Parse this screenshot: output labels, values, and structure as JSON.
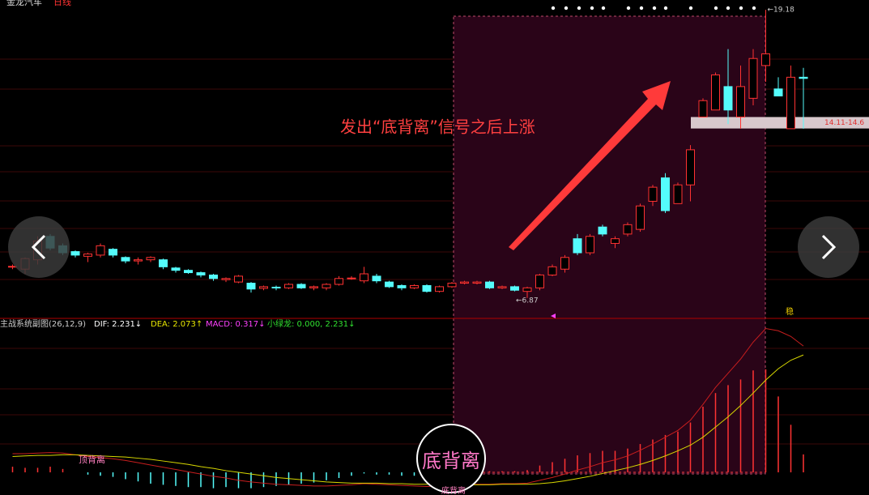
{
  "chart_data": [
    {
      "type": "candlestick",
      "title": "金龙汽车",
      "subtitle": "日线",
      "annotation": "发出“底背离”信号之后上涨",
      "max_label": "←19.18",
      "min_label": "←6.87",
      "signal_text": "稳",
      "open": [
        8.2,
        8.1,
        8.5,
        9.5,
        9.1,
        8.85,
        8.65,
        8.7,
        8.95,
        8.6,
        8.45,
        8.5,
        8.5,
        8.15,
        8.05,
        7.95,
        7.85,
        7.65,
        7.55,
        7.5,
        7.28,
        7.33,
        7.3,
        7.45,
        7.3,
        7.3,
        7.45,
        7.7,
        7.6,
        7.8,
        7.55,
        7.4,
        7.3,
        7.4,
        7.15,
        7.35,
        7.5,
        7.5,
        7.55,
        7.3,
        7.35,
        7.15,
        7.3,
        7.85,
        8.1,
        9.4,
        8.8,
        9.9,
        9.2,
        9.6,
        9.8,
        11.0,
        12.0,
        10.9,
        11.7,
        14.6,
        14.9,
        15.9,
        14.6,
        15.4,
        16.8,
        15.8,
        14.1,
        16.3
      ],
      "high": [
        8.3,
        8.6,
        9.5,
        9.6,
        9.2,
        8.9,
        8.8,
        9.2,
        9.0,
        8.65,
        8.6,
        8.65,
        8.55,
        8.2,
        8.1,
        8.0,
        7.9,
        7.75,
        7.85,
        7.55,
        7.4,
        7.4,
        7.5,
        7.5,
        7.4,
        7.5,
        7.8,
        7.8,
        8.2,
        7.9,
        7.6,
        7.45,
        7.45,
        7.45,
        7.4,
        7.55,
        7.6,
        7.6,
        7.6,
        7.4,
        7.4,
        7.35,
        7.9,
        8.3,
        8.7,
        9.6,
        9.6,
        10.0,
        9.5,
        10.1,
        10.9,
        11.7,
        12.2,
        11.8,
        13.4,
        15.4,
        16.5,
        17.5,
        16.8,
        17.5,
        19.18,
        16.3,
        16.8,
        16.7
      ],
      "low": [
        8.1,
        7.9,
        8.3,
        8.9,
        8.7,
        8.6,
        8.4,
        8.6,
        8.6,
        8.35,
        8.3,
        8.4,
        8.1,
        7.95,
        7.9,
        7.75,
        7.6,
        7.55,
        7.5,
        7.1,
        7.2,
        7.2,
        7.25,
        7.25,
        7.2,
        7.2,
        7.4,
        7.65,
        7.5,
        7.5,
        7.3,
        7.2,
        7.25,
        7.1,
        7.1,
        7.3,
        7.45,
        7.45,
        7.25,
        7.25,
        7.15,
        6.87,
        7.2,
        7.8,
        7.95,
        8.7,
        8.7,
        9.5,
        9.0,
        9.5,
        9.7,
        10.8,
        10.5,
        10.9,
        11.0,
        14.6,
        14.9,
        14.3,
        14.1,
        15.1,
        16.1,
        15.5,
        14.1,
        14.1
      ],
      "close": [
        8.22,
        8.55,
        9.3,
        9.0,
        8.8,
        8.7,
        8.75,
        9.1,
        8.7,
        8.45,
        8.5,
        8.6,
        8.2,
        8.05,
        7.95,
        7.85,
        7.7,
        7.7,
        7.8,
        7.25,
        7.35,
        7.3,
        7.45,
        7.3,
        7.35,
        7.45,
        7.7,
        7.72,
        7.9,
        7.6,
        7.35,
        7.3,
        7.4,
        7.15,
        7.35,
        7.5,
        7.55,
        7.55,
        7.3,
        7.35,
        7.2,
        7.3,
        7.85,
        8.2,
        8.6,
        8.8,
        9.5,
        9.6,
        9.4,
        10.0,
        10.8,
        11.6,
        10.6,
        11.7,
        13.2,
        15.3,
        16.4,
        14.9,
        15.9,
        17.1,
        17.3,
        15.5,
        16.3,
        16.25
      ],
      "up_color": "#ff3232",
      "down_color": "#54fcfc",
      "ylim": [
        6.1,
        19.6
      ],
      "band": {
        "range": [
          14.11,
          14.6
        ],
        "label": "14.11-14.6"
      }
    },
    {
      "type": "macd",
      "title": "主战系统副图(26,12,9)",
      "series": [
        {
          "label": "DIF: 2.231↓",
          "color": "#c81e1e",
          "values": [
            0.33,
            0.33,
            0.34,
            0.35,
            0.34,
            0.31,
            0.28,
            0.26,
            0.24,
            0.21,
            0.17,
            0.13,
            0.09,
            0.05,
            0.01,
            -0.03,
            -0.07,
            -0.1,
            -0.14,
            -0.17,
            -0.19,
            -0.21,
            -0.22,
            -0.23,
            -0.24,
            -0.24,
            -0.23,
            -0.22,
            -0.2,
            -0.21,
            -0.22,
            -0.23,
            -0.24,
            -0.25,
            -0.24,
            -0.23,
            -0.22,
            -0.21,
            -0.21,
            -0.2,
            -0.2,
            -0.19,
            -0.14,
            -0.09,
            -0.03,
            0.04,
            0.1,
            0.17,
            0.22,
            0.29,
            0.39,
            0.5,
            0.62,
            0.74,
            0.92,
            1.2,
            1.5,
            1.75,
            2.0,
            2.3,
            2.54,
            2.5,
            2.4,
            2.231
          ]
        },
        {
          "label": "DEA: 2.073↑",
          "color": "#d8d800",
          "values": [
            0.28,
            0.29,
            0.3,
            0.3,
            0.31,
            0.31,
            0.3,
            0.29,
            0.28,
            0.27,
            0.25,
            0.23,
            0.2,
            0.17,
            0.14,
            0.1,
            0.07,
            0.03,
            0.0,
            -0.03,
            -0.06,
            -0.09,
            -0.11,
            -0.13,
            -0.15,
            -0.17,
            -0.18,
            -0.19,
            -0.19,
            -0.19,
            -0.2,
            -0.2,
            -0.21,
            -0.21,
            -0.22,
            -0.22,
            -0.22,
            -0.22,
            -0.22,
            -0.21,
            -0.21,
            -0.21,
            -0.2,
            -0.18,
            -0.15,
            -0.11,
            -0.07,
            -0.02,
            0.03,
            0.08,
            0.14,
            0.21,
            0.29,
            0.38,
            0.48,
            0.62,
            0.8,
            0.98,
            1.18,
            1.4,
            1.63,
            1.83,
            1.98,
            2.073
          ]
        }
      ],
      "bars": {
        "label": "MACD: 0.317↓",
        "up_color": "#ff3232",
        "down_color": "#54fcfc",
        "values": [
          0.1,
          0.08,
          0.08,
          0.1,
          0.06,
          0.0,
          -0.04,
          -0.06,
          -0.08,
          -0.12,
          -0.16,
          -0.2,
          -0.22,
          -0.24,
          -0.26,
          -0.26,
          -0.28,
          -0.26,
          -0.28,
          -0.28,
          -0.26,
          -0.24,
          -0.22,
          -0.2,
          -0.18,
          -0.14,
          -0.1,
          -0.06,
          -0.02,
          -0.04,
          -0.04,
          -0.06,
          -0.06,
          -0.08,
          -0.04,
          -0.02,
          0.0,
          0.02,
          0.02,
          0.02,
          0.02,
          0.04,
          0.12,
          0.18,
          0.24,
          0.3,
          0.34,
          0.38,
          0.38,
          0.42,
          0.5,
          0.58,
          0.66,
          0.72,
          0.88,
          1.16,
          1.4,
          1.54,
          1.64,
          1.8,
          1.82,
          1.34,
          0.84,
          0.317
        ]
      },
      "extra_label": "小绿龙: 0.000, 2.231↓",
      "divergence_labels": [
        "顶背离",
        "底背离",
        "底背离"
      ],
      "ylim": [
        -0.4,
        2.69
      ]
    }
  ]
}
